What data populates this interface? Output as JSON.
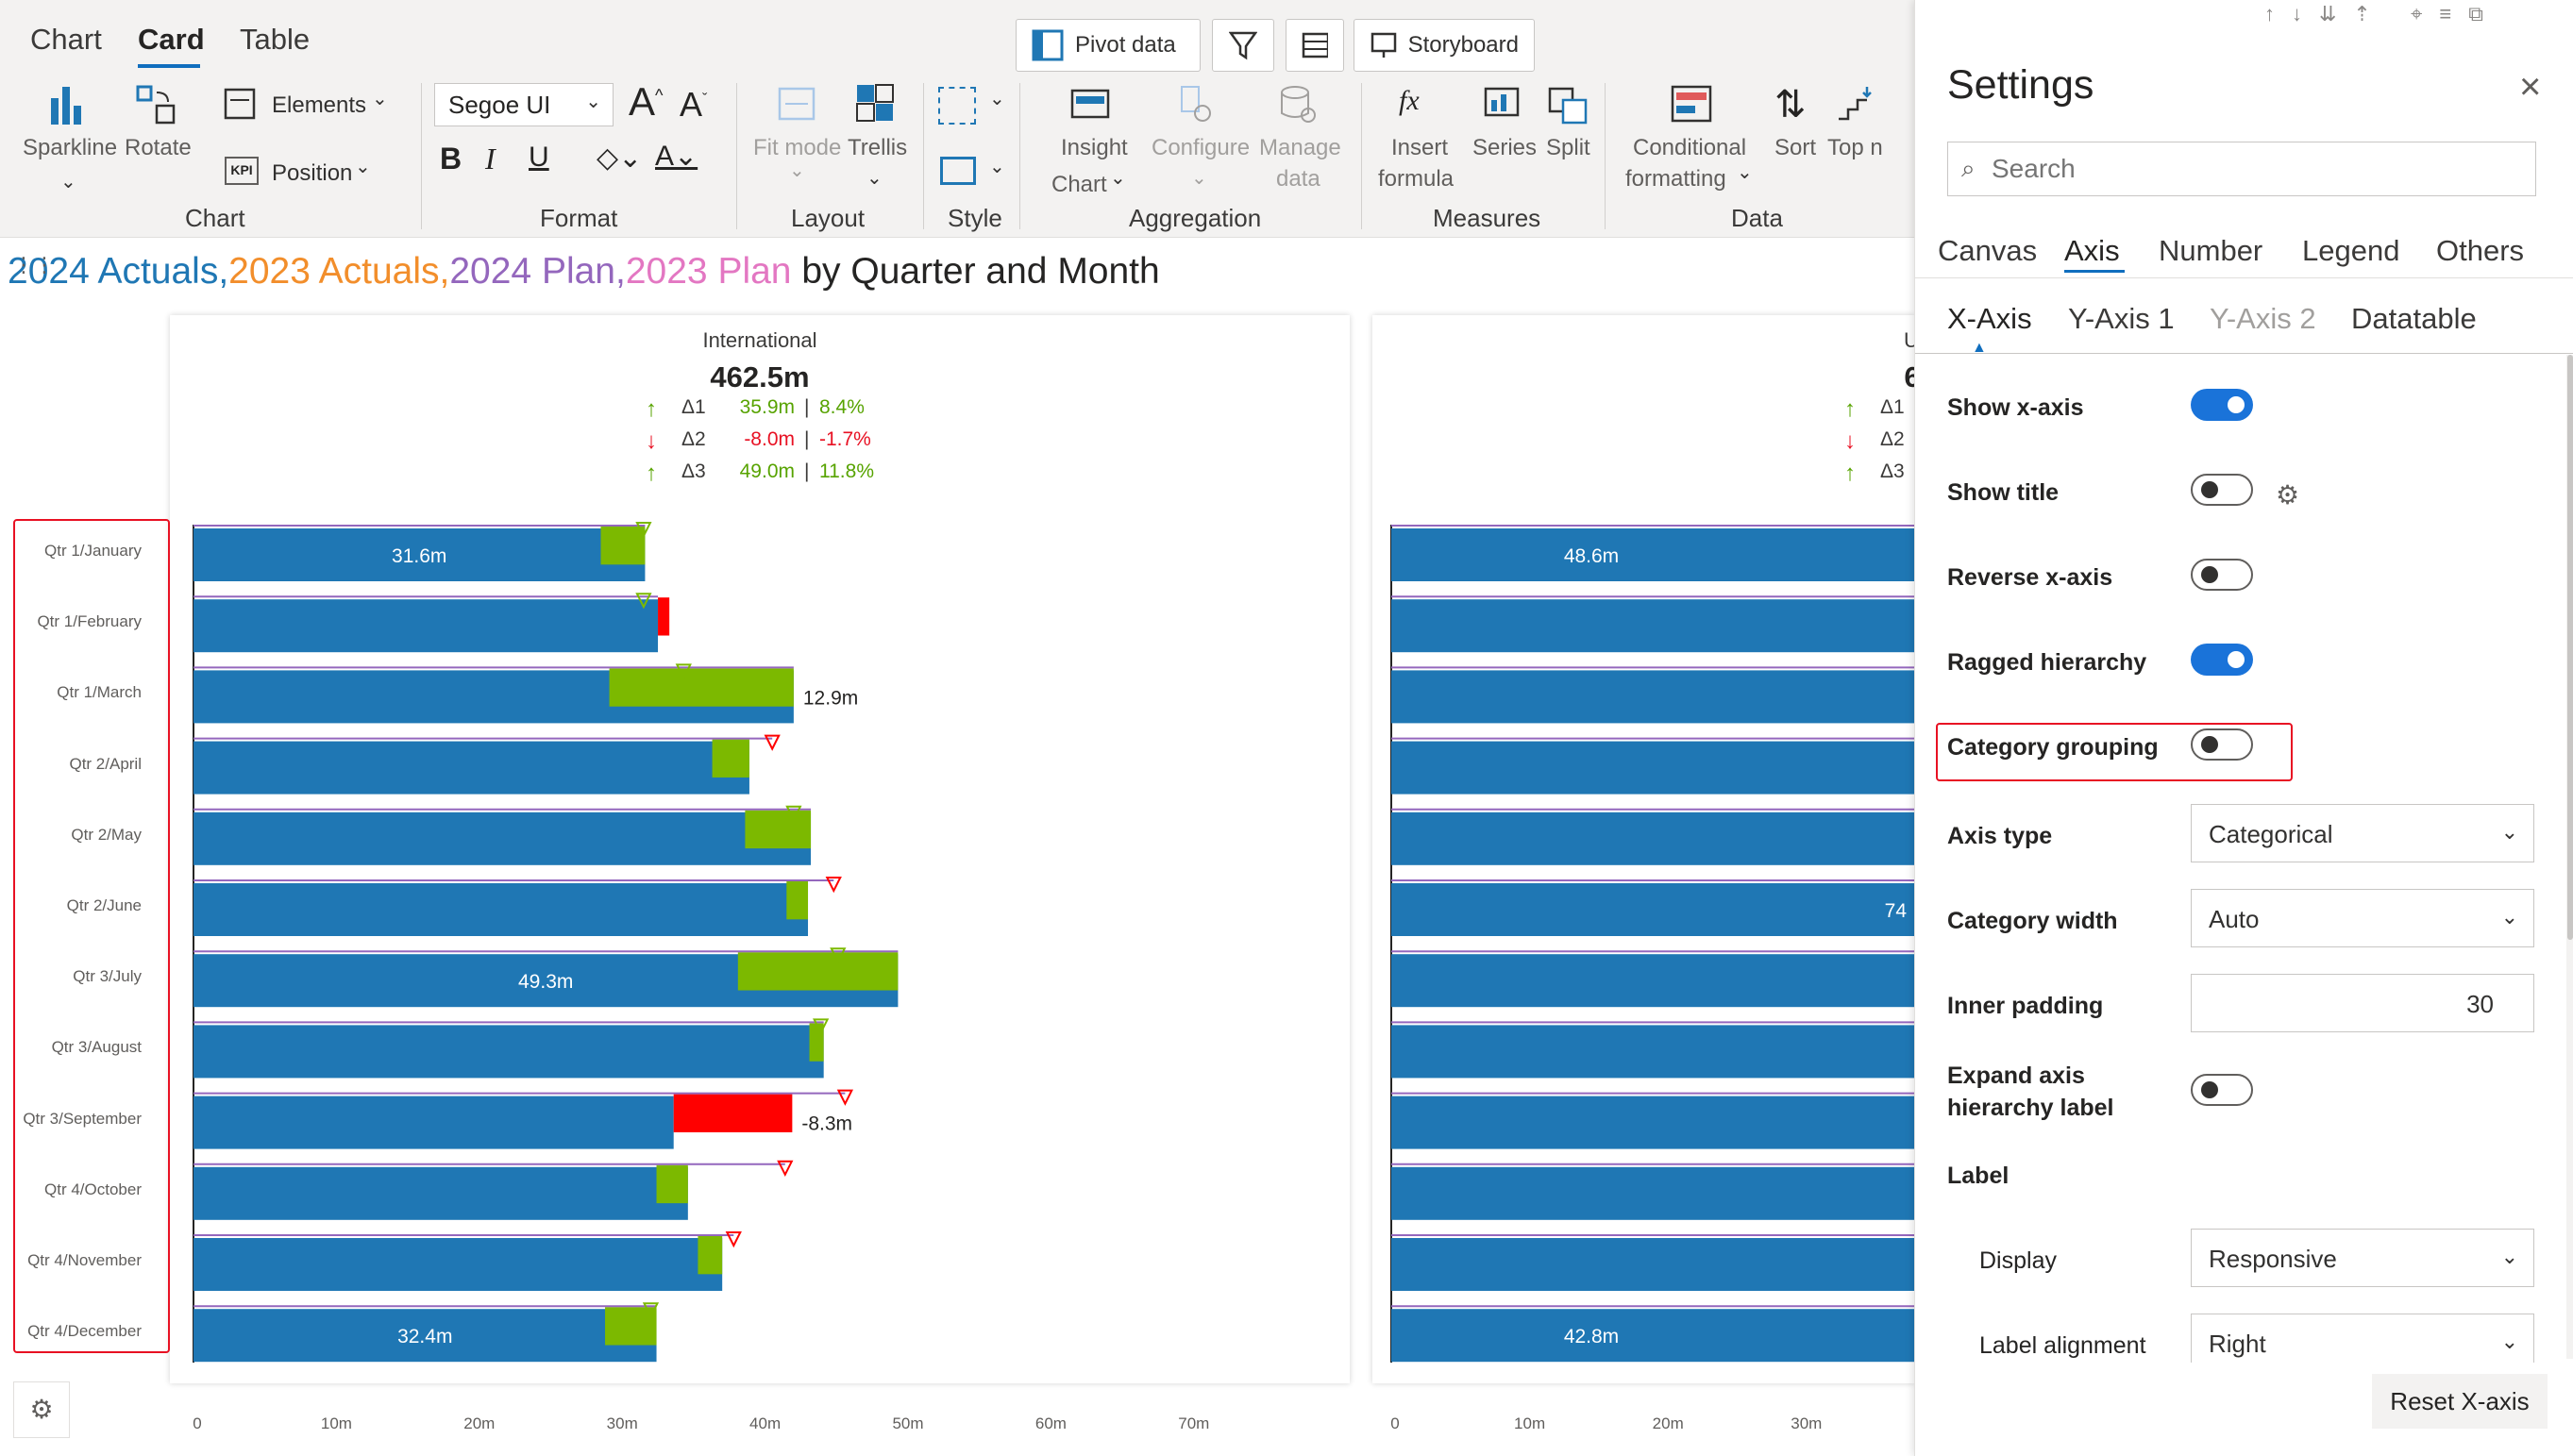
{
  "ribbon": {
    "tabs": [
      "Chart",
      "Card",
      "Table"
    ],
    "top_buttons": {
      "pivot": "Pivot data",
      "storyboard": "Storyboard"
    },
    "chart_group": {
      "sparkline": "Sparkline",
      "rotate": "Rotate",
      "elements": "Elements",
      "position": "Position",
      "label": "Chart"
    },
    "format_group": {
      "font": "Segoe UI",
      "bold": "B",
      "italic": "I",
      "underline": "U",
      "label": "Format"
    },
    "layout_group": {
      "fit_mode": "Fit mode",
      "trellis": "Trellis",
      "label": "Layout"
    },
    "style_group": {
      "label": "Style"
    },
    "aggregation_group": {
      "insight": "Insight",
      "chart_mode": "Chart",
      "configure": "Configure",
      "manage": "Manage",
      "manage2": "data",
      "label": "Aggregation"
    },
    "measures_group": {
      "insert": "Insert",
      "formula": "formula",
      "series": "Series",
      "split": "Split",
      "label": "Measures"
    },
    "data_group": {
      "conditional": "Conditional",
      "formatting": "formatting",
      "sort": "Sort",
      "topn": "Top n",
      "label": "Data"
    }
  },
  "chart_title": {
    "part1": "2024 Actuals,",
    "part2": "2023 Actuals,",
    "part3": "2024 Plan,",
    "part4": "2023 Plan",
    "part5": " by Quarter and Month",
    "colors": {
      "actual24": "#1f77b4",
      "actual23": "#f28e2b",
      "plan24": "#9467bd",
      "plan23": "#e377c2"
    }
  },
  "panel_left": {
    "title": "International",
    "value": "462.5m",
    "deltas": [
      {
        "name": "Δ1",
        "abs": "35.9m",
        "pct": "8.4%",
        "dir": "up"
      },
      {
        "name": "Δ2",
        "abs": "-8.0m",
        "pct": "-1.7%",
        "dir": "down"
      },
      {
        "name": "Δ3",
        "abs": "49.0m",
        "pct": "11.8%",
        "dir": "up"
      }
    ]
  },
  "panel_right": {
    "title": "U",
    "value": "6",
    "deltas": [
      {
        "name": "Δ1"
      },
      {
        "name": "Δ2"
      },
      {
        "name": "Δ3"
      }
    ]
  },
  "chart_data": {
    "type": "bar",
    "categories": [
      "Qtr 1/January",
      "Qtr 1/February",
      "Qtr 1/March",
      "Qtr 2/April",
      "Qtr 2/May",
      "Qtr 2/June",
      "Qtr 3/July",
      "Qtr 3/August",
      "Qtr 3/September",
      "Qtr 4/October",
      "Qtr 4/November",
      "Qtr 4/December"
    ],
    "xlim": [
      0,
      75
    ],
    "x_ticks": [
      "0",
      "10m",
      "20m",
      "30m",
      "40m",
      "50m",
      "60m",
      "70m"
    ],
    "right_x_ticks": [
      "0",
      "10m",
      "20m",
      "30m"
    ],
    "series": [
      {
        "name": "2024 Actuals",
        "values": [
          31.6,
          32.5,
          42.0,
          38.9,
          43.2,
          43.0,
          49.3,
          44.1,
          33.6,
          34.6,
          37.0,
          32.4
        ]
      },
      {
        "name": "2023 Actuals",
        "values": [
          28.5,
          33.3,
          29.1,
          36.3,
          38.6,
          41.5,
          38.1,
          43.1,
          41.9,
          32.4,
          35.3,
          28.8
        ]
      },
      {
        "name": "2024 Plan",
        "values": [
          31.5,
          31.5,
          34.3,
          40.5,
          42.0,
          44.8,
          45.1,
          43.9,
          45.6,
          41.4,
          37.8,
          32.0
        ]
      }
    ],
    "data_labels": [
      {
        "index": 0,
        "text": "31.6m",
        "pos": "inside"
      },
      {
        "index": 2,
        "text": "12.9m",
        "pos": "outside"
      },
      {
        "index": 6,
        "text": "49.3m",
        "pos": "inside"
      },
      {
        "index": 8,
        "text": "-8.3m",
        "pos": "outside"
      },
      {
        "index": 11,
        "text": "32.4m",
        "pos": "inside"
      }
    ],
    "right_data_labels": [
      {
        "index": 0,
        "text": "48.6m"
      },
      {
        "index": 5,
        "text": "74"
      },
      {
        "index": 11,
        "text": "42.8m"
      }
    ],
    "colors": {
      "actual": "#1f77b4",
      "positive": "#7cb900",
      "negative": "#ff0000",
      "plan_marker": "#ff0000",
      "plan23_line": "#9467bd"
    }
  },
  "settings": {
    "title": "Settings",
    "search_placeholder": "Search",
    "tabs": [
      "Canvas",
      "Axis",
      "Number",
      "Legend",
      "Others"
    ],
    "subtabs": [
      "X-Axis",
      "Y-Axis 1",
      "Y-Axis 2",
      "Datatable"
    ],
    "rows": [
      {
        "label": "Show x-axis",
        "state": "on"
      },
      {
        "label": "Show title",
        "state": "off"
      },
      {
        "label": "Reverse x-axis",
        "state": "off"
      },
      {
        "label": "Ragged hierarchy",
        "state": "on"
      },
      {
        "label": "Category grouping",
        "state": "off"
      }
    ],
    "axis_type": {
      "label": "Axis type",
      "value": "Categorical"
    },
    "category_width": {
      "label": "Category width",
      "value": "Auto"
    },
    "inner_padding": {
      "label": "Inner padding",
      "value": "30"
    },
    "expand_label": {
      "line1": "Expand axis",
      "line2": "hierarchy label",
      "state": "off"
    },
    "label_section": "Label",
    "display": {
      "label": "Display",
      "value": "Responsive"
    },
    "label_alignment": {
      "label": "Label alignment",
      "value": "Right"
    },
    "reset": "Reset X-axis"
  }
}
